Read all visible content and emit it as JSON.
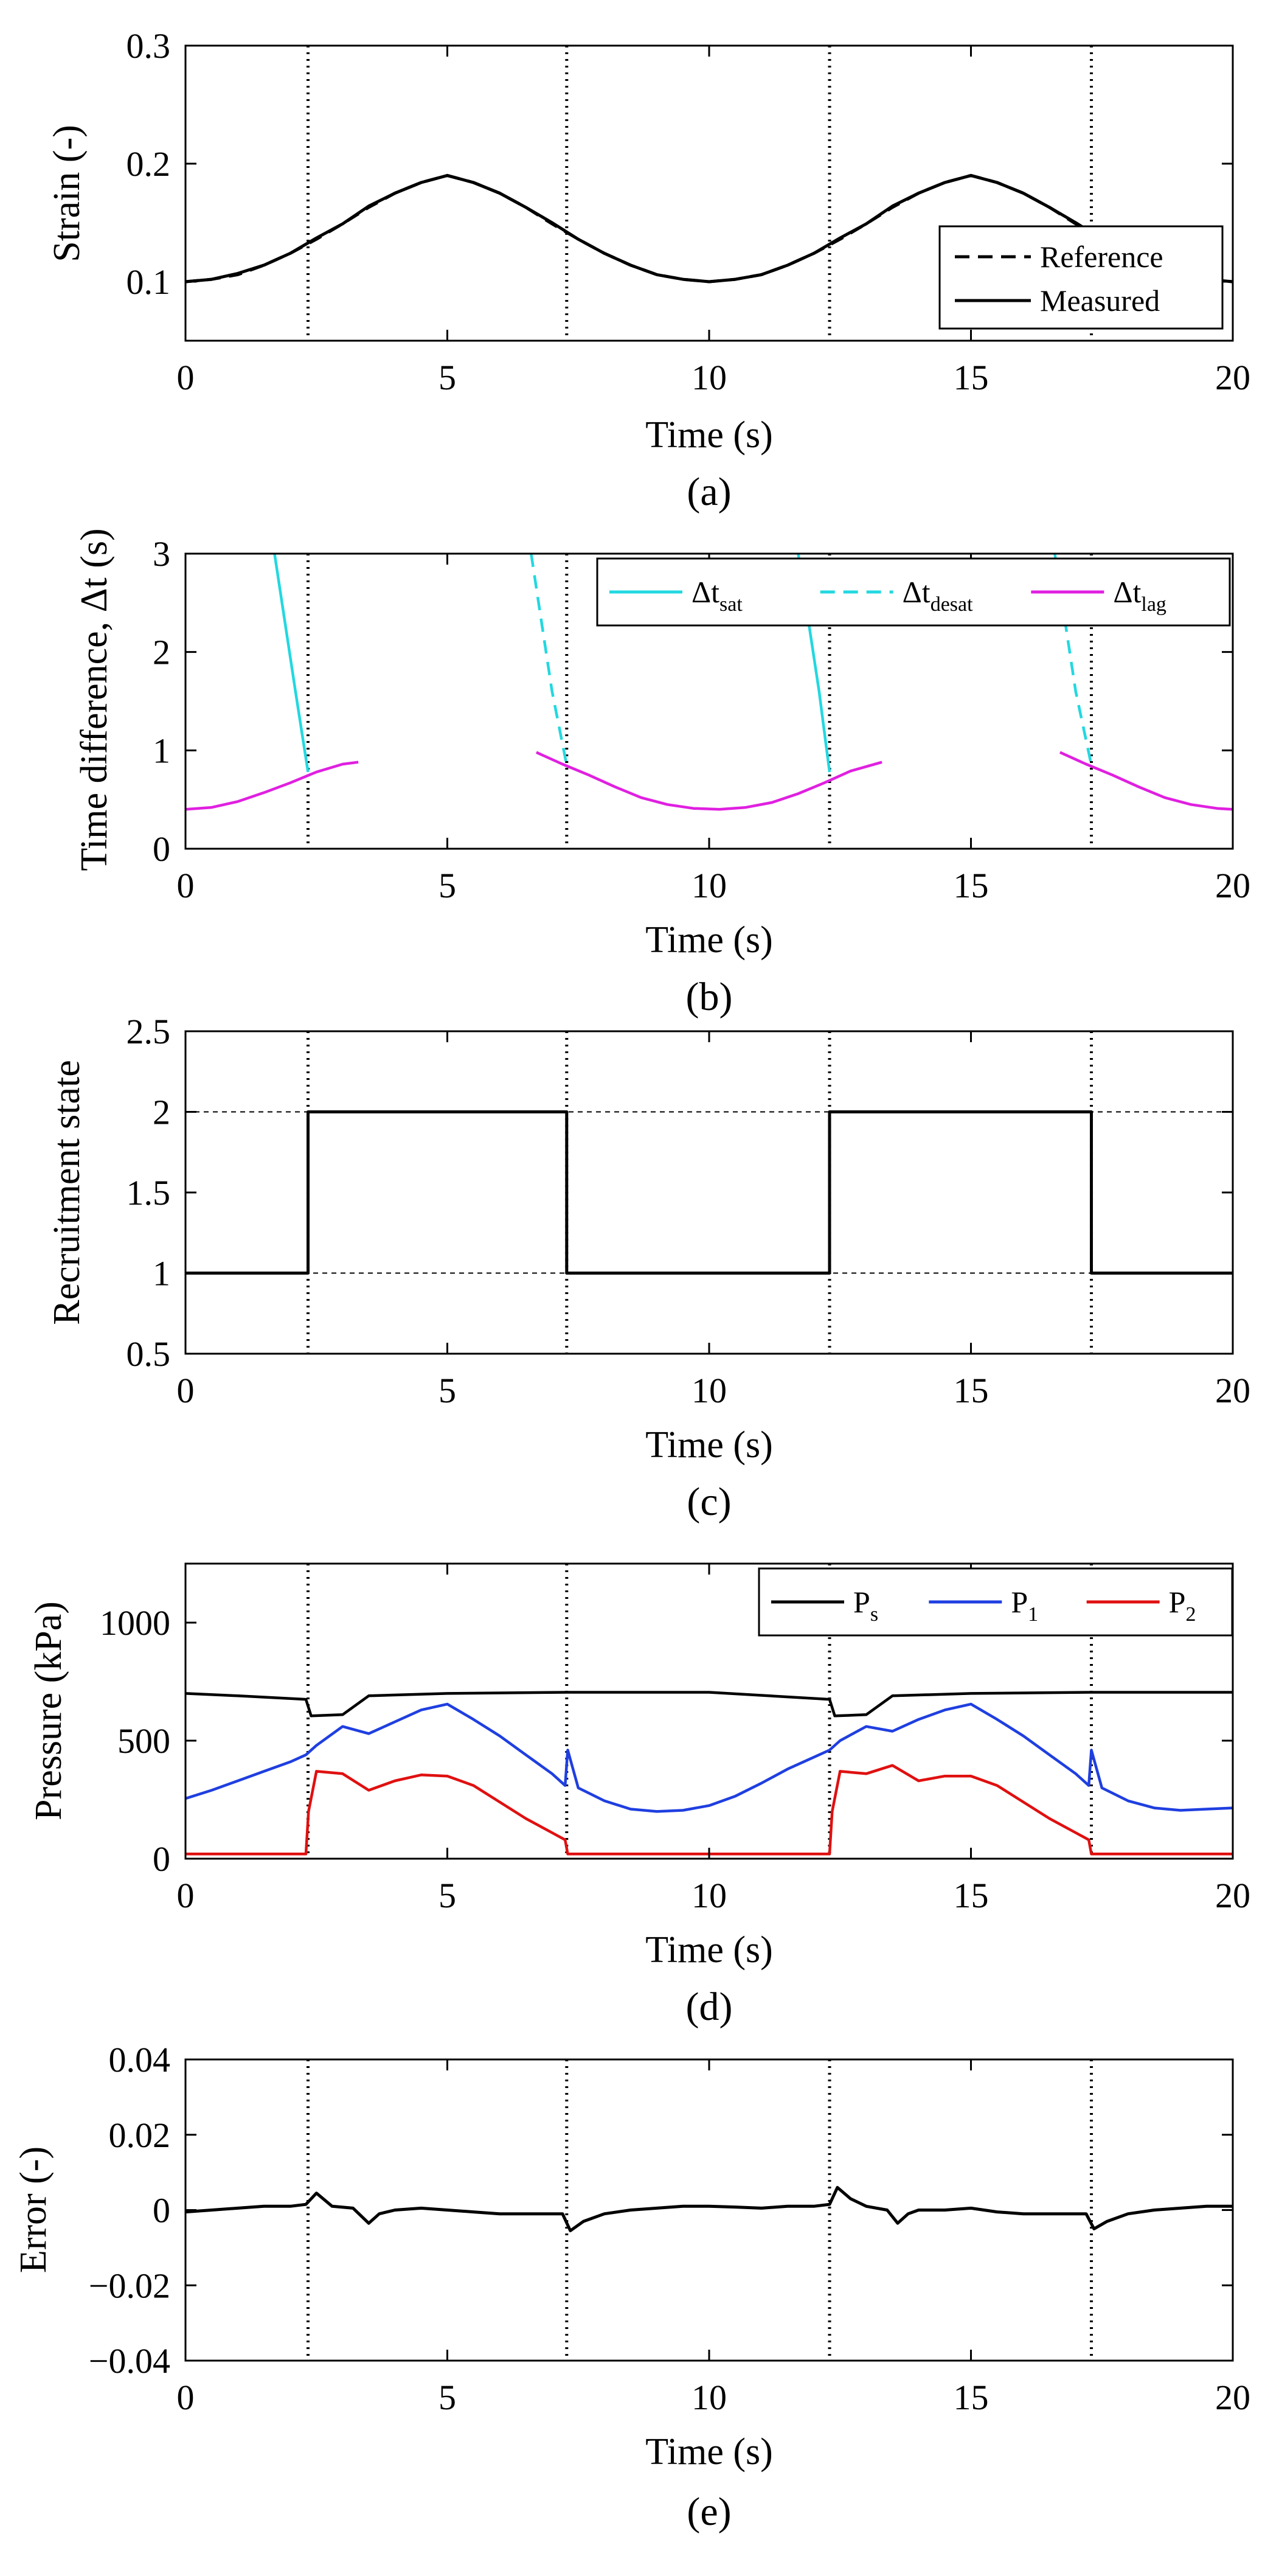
{
  "chart_data": [
    {
      "type": "line",
      "panel": "(a)",
      "xlabel": "Time (s)",
      "ylabel": "Strain (-)",
      "xlim": [
        0,
        20
      ],
      "ylim": [
        0.05,
        0.3
      ],
      "xticks": [
        0,
        5,
        10,
        15,
        20
      ],
      "yticks": [
        0.1,
        0.2,
        0.3
      ],
      "vlines": [
        2.34,
        7.28,
        12.3,
        17.3
      ],
      "legend_position": "bottom-right",
      "series": [
        {
          "name": "Reference",
          "style": "dashed",
          "color": "#000000",
          "x": [
            0,
            0.5,
            1,
            1.5,
            2,
            2.5,
            3,
            3.5,
            4,
            4.5,
            5,
            5.5,
            6,
            6.5,
            7,
            7.5,
            8,
            8.5,
            9,
            9.5,
            10,
            10.5,
            11,
            11.5,
            12,
            12.5,
            13,
            13.5,
            14,
            14.5,
            15,
            15.5,
            16,
            16.5,
            17,
            17.5,
            18,
            18.5,
            19,
            19.5,
            20
          ],
          "y": [
            0.1,
            0.102,
            0.106,
            0.114,
            0.124,
            0.136,
            0.149,
            0.163,
            0.175,
            0.184,
            0.19,
            0.184,
            0.175,
            0.163,
            0.149,
            0.136,
            0.124,
            0.114,
            0.106,
            0.102,
            0.1,
            0.102,
            0.106,
            0.114,
            0.124,
            0.136,
            0.149,
            0.163,
            0.175,
            0.184,
            0.19,
            0.184,
            0.175,
            0.163,
            0.149,
            0.136,
            0.124,
            0.114,
            0.106,
            0.102,
            0.1
          ]
        },
        {
          "name": "Measured",
          "style": "solid",
          "color": "#000000",
          "x": [
            0,
            0.5,
            1,
            1.5,
            2,
            2.5,
            3,
            3.5,
            4,
            4.5,
            5,
            5.5,
            6,
            6.5,
            7,
            7.5,
            8,
            8.5,
            9,
            9.5,
            10,
            10.5,
            11,
            11.5,
            12,
            12.5,
            13,
            13.5,
            14,
            14.5,
            15,
            15.5,
            16,
            16.5,
            17,
            17.5,
            18,
            18.5,
            19,
            19.5,
            20
          ],
          "y": [
            0.1,
            0.102,
            0.107,
            0.114,
            0.124,
            0.137,
            0.149,
            0.164,
            0.175,
            0.184,
            0.19,
            0.184,
            0.175,
            0.163,
            0.15,
            0.136,
            0.124,
            0.114,
            0.106,
            0.102,
            0.1,
            0.102,
            0.106,
            0.114,
            0.124,
            0.137,
            0.149,
            0.164,
            0.175,
            0.184,
            0.19,
            0.184,
            0.175,
            0.163,
            0.15,
            0.136,
            0.124,
            0.114,
            0.106,
            0.102,
            0.1
          ]
        }
      ]
    },
    {
      "type": "line",
      "panel": "(b)",
      "xlabel": "Time (s)",
      "ylabel": "Time difference, Δt (s)",
      "xlim": [
        0,
        20
      ],
      "ylim": [
        0,
        3
      ],
      "xticks": [
        0,
        5,
        10,
        15,
        20
      ],
      "yticks": [
        0,
        1,
        2,
        3
      ],
      "vlines": [
        2.34,
        7.28,
        12.3,
        17.3
      ],
      "legend_position": "top-right",
      "series": [
        {
          "name": "Δt",
          "subscript": "sat",
          "style": "solid",
          "color": "#22d8e0",
          "segments": [
            {
              "x": [
                1.7,
                1.9,
                2.1,
                2.34
              ],
              "y": [
                3.0,
                2.3,
                1.6,
                0.78
              ]
            },
            {
              "x": [
                11.7,
                11.9,
                12.1,
                12.3
              ],
              "y": [
                3.0,
                2.3,
                1.6,
                0.78
              ]
            }
          ]
        },
        {
          "name": "Δt",
          "subscript": "desat",
          "style": "dashed",
          "color": "#22d8e0",
          "segments": [
            {
              "x": [
                6.6,
                6.8,
                7.0,
                7.28
              ],
              "y": [
                3.0,
                2.3,
                1.6,
                0.85
              ]
            },
            {
              "x": [
                16.6,
                16.8,
                17.0,
                17.3
              ],
              "y": [
                3.0,
                2.3,
                1.6,
                0.85
              ]
            }
          ]
        },
        {
          "name": "Δt",
          "subscript": "lag",
          "style": "solid",
          "color": "#e020e0",
          "segments": [
            {
              "x": [
                0,
                0.5,
                1,
                1.5,
                2,
                2.5,
                3,
                3.3
              ],
              "y": [
                0.4,
                0.42,
                0.48,
                0.57,
                0.67,
                0.78,
                0.86,
                0.88
              ]
            },
            {
              "x": [
                6.7,
                7.2,
                7.7,
                8.2,
                8.7,
                9.2,
                9.7,
                10.2,
                10.7,
                11.2,
                11.7,
                12.2,
                12.7,
                13.3
              ],
              "y": [
                0.98,
                0.86,
                0.75,
                0.63,
                0.52,
                0.45,
                0.41,
                0.4,
                0.42,
                0.47,
                0.56,
                0.67,
                0.79,
                0.88
              ]
            },
            {
              "x": [
                16.7,
                17.2,
                17.7,
                18.2,
                18.7,
                19.2,
                19.7,
                20
              ],
              "y": [
                0.98,
                0.86,
                0.75,
                0.63,
                0.52,
                0.45,
                0.41,
                0.4
              ]
            }
          ]
        }
      ]
    },
    {
      "type": "line",
      "panel": "(c)",
      "xlabel": "Time (s)",
      "ylabel": "Recruitment state",
      "xlim": [
        0,
        20
      ],
      "ylim": [
        0.5,
        2.5
      ],
      "xticks": [
        0,
        5,
        10,
        15,
        20
      ],
      "yticks": [
        0.5,
        1,
        1.5,
        2,
        2.5
      ],
      "vlines": [
        2.34,
        7.28,
        12.3,
        17.3
      ],
      "hlines_dashed": [
        1,
        2
      ],
      "series": [
        {
          "name": "",
          "style": "solid",
          "color": "#000000",
          "x": [
            0,
            2.34,
            2.34,
            7.28,
            7.28,
            12.3,
            12.3,
            17.3,
            17.3,
            20
          ],
          "y": [
            1,
            1,
            2,
            2,
            1,
            1,
            2,
            2,
            1,
            1
          ]
        }
      ]
    },
    {
      "type": "line",
      "panel": "(d)",
      "xlabel": "Time (s)",
      "ylabel": "Pressure (kPa)",
      "xlim": [
        0,
        20
      ],
      "ylim": [
        0,
        1250
      ],
      "xticks": [
        0,
        5,
        10,
        15,
        20
      ],
      "yticks": [
        0,
        500,
        1000
      ],
      "vlines": [
        2.34,
        7.28,
        12.3,
        17.3
      ],
      "legend_position": "top-right",
      "series": [
        {
          "name": "P",
          "subscript": "s",
          "style": "solid",
          "color": "#000000",
          "x": [
            0,
            1,
            2.3,
            2.4,
            3.0,
            3.5,
            5,
            7.3,
            10,
            12.3,
            12.4,
            13,
            13.5,
            15,
            17.3,
            20
          ],
          "y": [
            700,
            690,
            675,
            605,
            610,
            690,
            700,
            705,
            705,
            675,
            605,
            610,
            690,
            700,
            705,
            705
          ]
        },
        {
          "name": "P",
          "subscript": "1",
          "style": "solid",
          "color": "#1f3fe0",
          "x": [
            0,
            0.5,
            1,
            1.5,
            2,
            2.3,
            2.5,
            3,
            3.5,
            4,
            4.5,
            5,
            5.5,
            6,
            6.5,
            7,
            7.25,
            7.3,
            7.5,
            8,
            8.5,
            9,
            9.5,
            10,
            10.5,
            11,
            11.5,
            12,
            12.3,
            12.5,
            13,
            13.5,
            14,
            14.5,
            15,
            15.5,
            16,
            16.5,
            17,
            17.25,
            17.3,
            17.5,
            18,
            18.5,
            19,
            19.5,
            20
          ],
          "y": [
            255,
            290,
            330,
            370,
            410,
            440,
            480,
            560,
            530,
            580,
            630,
            655,
            590,
            520,
            440,
            360,
            310,
            460,
            300,
            245,
            210,
            200,
            205,
            225,
            265,
            320,
            380,
            430,
            460,
            500,
            560,
            540,
            590,
            630,
            655,
            590,
            520,
            440,
            360,
            310,
            460,
            300,
            245,
            215,
            205,
            210,
            215
          ]
        },
        {
          "name": "P",
          "subscript": "2",
          "style": "solid",
          "color": "#e01010",
          "x": [
            0,
            2.3,
            2.35,
            2.5,
            3,
            3.5,
            4,
            4.5,
            5,
            5.5,
            6,
            6.5,
            7,
            7.25,
            7.3,
            10,
            12.3,
            12.35,
            12.5,
            13,
            13.5,
            14,
            14.5,
            15,
            15.5,
            16,
            16.5,
            17,
            17.25,
            17.3,
            20
          ],
          "y": [
            20,
            20,
            200,
            370,
            360,
            290,
            330,
            355,
            350,
            310,
            240,
            170,
            110,
            80,
            20,
            20,
            20,
            200,
            370,
            360,
            395,
            330,
            350,
            350,
            310,
            240,
            170,
            110,
            80,
            20,
            20
          ]
        }
      ]
    },
    {
      "type": "line",
      "panel": "(e)",
      "xlabel": "Time (s)",
      "ylabel": "Error (-)",
      "xlim": [
        0,
        20
      ],
      "ylim": [
        -0.04,
        0.04
      ],
      "xticks": [
        0,
        5,
        10,
        15,
        20
      ],
      "yticks": [
        -0.04,
        -0.02,
        0,
        0.02,
        0.04
      ],
      "ytick_labels": [
        "−0.04",
        "−0.02",
        "0",
        "0.02",
        "0.04"
      ],
      "vlines": [
        2.34,
        7.28,
        12.3,
        17.3
      ],
      "series": [
        {
          "name": "",
          "style": "solid",
          "color": "#000000",
          "x": [
            0,
            0.5,
            1,
            1.5,
            2,
            2.3,
            2.5,
            2.8,
            3.2,
            3.5,
            3.7,
            4,
            4.5,
            5,
            5.5,
            6,
            6.5,
            7,
            7.2,
            7.35,
            7.6,
            8,
            8.5,
            9,
            9.5,
            10,
            10.5,
            11,
            11.5,
            12,
            12.3,
            12.45,
            12.7,
            13,
            13.4,
            13.6,
            13.8,
            14,
            14.5,
            15,
            15.5,
            16,
            16.5,
            17,
            17.2,
            17.35,
            17.6,
            18,
            18.5,
            19,
            19.5,
            20
          ],
          "y": [
            -0.0005,
            0.0,
            0.0005,
            0.001,
            0.001,
            0.0015,
            0.0045,
            0.001,
            0.0005,
            -0.0035,
            -0.001,
            0.0,
            0.0005,
            0.0,
            -0.0005,
            -0.001,
            -0.001,
            -0.001,
            -0.001,
            -0.0055,
            -0.003,
            -0.001,
            0.0,
            0.0005,
            0.001,
            0.001,
            0.0008,
            0.0005,
            0.001,
            0.001,
            0.0015,
            0.006,
            0.003,
            0.001,
            0.0,
            -0.0035,
            -0.001,
            0.0,
            0.0,
            0.0005,
            -0.0005,
            -0.001,
            -0.001,
            -0.001,
            -0.001,
            -0.005,
            -0.003,
            -0.001,
            0.0,
            0.0005,
            0.001,
            0.001
          ]
        }
      ]
    }
  ]
}
